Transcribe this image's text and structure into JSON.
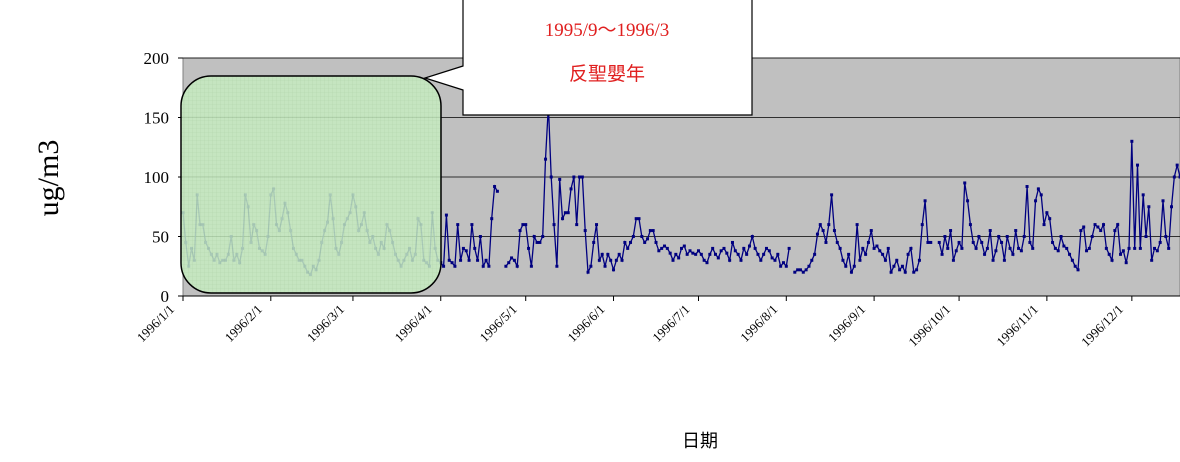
{
  "chart_data": {
    "type": "line",
    "y_label": "ug/m3",
    "x_label": "日期",
    "annotation": [
      "1995/9～1996/3",
      "反聖嬰年"
    ],
    "ylim": [
      0,
      200
    ],
    "yticks": [
      0,
      50,
      100,
      150,
      200
    ],
    "grid": true,
    "xlim": [
      "1996/1/1",
      "1996/12/18"
    ],
    "xticks": [
      "1996/1/1",
      "1996/2/1",
      "1996/3/1",
      "1996/4/1",
      "1996/5/1",
      "1996/6/1",
      "1996/7/1",
      "1996/8/1",
      "1996/9/1",
      "1996/10/1",
      "1996/11/1",
      "1996/12/1"
    ],
    "x": [
      "1996/1/1",
      "1996/1/2",
      "1996/1/3",
      "1996/1/4",
      "1996/1/5",
      "1996/1/6",
      "1996/1/7",
      "1996/1/8",
      "1996/1/9",
      "1996/1/10",
      "1996/1/11",
      "1996/1/12",
      "1996/1/13",
      "1996/1/14",
      "1996/1/15",
      "1996/1/16",
      "1996/1/17",
      "1996/1/18",
      "1996/1/19",
      "1996/1/20",
      "1996/1/21",
      "1996/1/22",
      "1996/1/23",
      "1996/1/24",
      "1996/1/25",
      "1996/1/26",
      "1996/1/27",
      "1996/1/28",
      "1996/1/29",
      "1996/1/30",
      "1996/1/31",
      "1996/2/1",
      "1996/2/2",
      "1996/2/3",
      "1996/2/4",
      "1996/2/5",
      "1996/2/6",
      "1996/2/7",
      "1996/2/8",
      "1996/2/9",
      "1996/2/10",
      "1996/2/11",
      "1996/2/12",
      "1996/2/13",
      "1996/2/14",
      "1996/2/15",
      "1996/2/16",
      "1996/2/17",
      "1996/2/18",
      "1996/2/19",
      "1996/2/20",
      "1996/2/21",
      "1996/2/22",
      "1996/2/23",
      "1996/2/24",
      "1996/2/25",
      "1996/2/26",
      "1996/2/27",
      "1996/2/28",
      "1996/2/29",
      "1996/3/1",
      "1996/3/2",
      "1996/3/3",
      "1996/3/4",
      "1996/3/5",
      "1996/3/6",
      "1996/3/7",
      "1996/3/8",
      "1996/3/9",
      "1996/3/10",
      "1996/3/11",
      "1996/3/12",
      "1996/3/13",
      "1996/3/14",
      "1996/3/15",
      "1996/3/16",
      "1996/3/17",
      "1996/3/18",
      "1996/3/19",
      "1996/3/20",
      "1996/3/21",
      "1996/3/22",
      "1996/3/23",
      "1996/3/24",
      "1996/3/25",
      "1996/3/26",
      "1996/3/27",
      "1996/3/28",
      "1996/3/29",
      "1996/3/30",
      "1996/3/31",
      "1996/4/1",
      "1996/4/2",
      "1996/4/3",
      "1996/4/4",
      "1996/4/5",
      "1996/4/6",
      "1996/4/7",
      "1996/4/8",
      "1996/4/9",
      "1996/4/10",
      "1996/4/11",
      "1996/4/12",
      "1996/4/13",
      "1996/4/14",
      "1996/4/15",
      "1996/4/16",
      "1996/4/17",
      "1996/4/18",
      "1996/4/19",
      "1996/4/20",
      "1996/4/21",
      "1996/4/22",
      "1996/4/23",
      "1996/4/24",
      "1996/4/25",
      "1996/4/26",
      "1996/4/27",
      "1996/4/28",
      "1996/4/29",
      "1996/4/30",
      "1996/5/1",
      "1996/5/2",
      "1996/5/3",
      "1996/5/4",
      "1996/5/5",
      "1996/5/6",
      "1996/5/7",
      "1996/5/8",
      "1996/5/9",
      "1996/5/10",
      "1996/5/11",
      "1996/5/12",
      "1996/5/13",
      "1996/5/14",
      "1996/5/15",
      "1996/5/16",
      "1996/5/17",
      "1996/5/18",
      "1996/5/19",
      "1996/5/20",
      "1996/5/21",
      "1996/5/22",
      "1996/5/23",
      "1996/5/24",
      "1996/5/25",
      "1996/5/26",
      "1996/5/27",
      "1996/5/28",
      "1996/5/29",
      "1996/5/30",
      "1996/5/31",
      "1996/6/1",
      "1996/6/2",
      "1996/6/3",
      "1996/6/4",
      "1996/6/5",
      "1996/6/6",
      "1996/6/7",
      "1996/6/8",
      "1996/6/9",
      "1996/6/10",
      "1996/6/11",
      "1996/6/12",
      "1996/6/13",
      "1996/6/14",
      "1996/6/15",
      "1996/6/16",
      "1996/6/17",
      "1996/6/18",
      "1996/6/19",
      "1996/6/20",
      "1996/6/21",
      "1996/6/22",
      "1996/6/23",
      "1996/6/24",
      "1996/6/25",
      "1996/6/26",
      "1996/6/27",
      "1996/6/28",
      "1996/6/29",
      "1996/6/30",
      "1996/7/1",
      "1996/7/2",
      "1996/7/3",
      "1996/7/4",
      "1996/7/5",
      "1996/7/6",
      "1996/7/7",
      "1996/7/8",
      "1996/7/9",
      "1996/7/10",
      "1996/7/11",
      "1996/7/12",
      "1996/7/13",
      "1996/7/14",
      "1996/7/15",
      "1996/7/16",
      "1996/7/17",
      "1996/7/18",
      "1996/7/19",
      "1996/7/20",
      "1996/7/21",
      "1996/7/22",
      "1996/7/23",
      "1996/7/24",
      "1996/7/25",
      "1996/7/26",
      "1996/7/27",
      "1996/7/28",
      "1996/7/29",
      "1996/7/30",
      "1996/7/31",
      "1996/8/1",
      "1996/8/2",
      "1996/8/3",
      "1996/8/4",
      "1996/8/5",
      "1996/8/6",
      "1996/8/7",
      "1996/8/8",
      "1996/8/9",
      "1996/8/10",
      "1996/8/11",
      "1996/8/12",
      "1996/8/13",
      "1996/8/14",
      "1996/8/15",
      "1996/8/16",
      "1996/8/17",
      "1996/8/18",
      "1996/8/19",
      "1996/8/20",
      "1996/8/21",
      "1996/8/22",
      "1996/8/23",
      "1996/8/24",
      "1996/8/25",
      "1996/8/26",
      "1996/8/27",
      "1996/8/28",
      "1996/8/29",
      "1996/8/30",
      "1996/8/31",
      "1996/9/1",
      "1996/9/2",
      "1996/9/3",
      "1996/9/4",
      "1996/9/5",
      "1996/9/6",
      "1996/9/7",
      "1996/9/8",
      "1996/9/9",
      "1996/9/10",
      "1996/9/11",
      "1996/9/12",
      "1996/9/13",
      "1996/9/14",
      "1996/9/15",
      "1996/9/16",
      "1996/9/17",
      "1996/9/18",
      "1996/9/19",
      "1996/9/20",
      "1996/9/21",
      "1996/9/22",
      "1996/9/23",
      "1996/9/24",
      "1996/9/25",
      "1996/9/26",
      "1996/9/27",
      "1996/9/28",
      "1996/9/29",
      "1996/9/30",
      "1996/10/1",
      "1996/10/2",
      "1996/10/3",
      "1996/10/4",
      "1996/10/5",
      "1996/10/6",
      "1996/10/7",
      "1996/10/8",
      "1996/10/9",
      "1996/10/10",
      "1996/10/11",
      "1996/10/12",
      "1996/10/13",
      "1996/10/14",
      "1996/10/15",
      "1996/10/16",
      "1996/10/17",
      "1996/10/18",
      "1996/10/19",
      "1996/10/20",
      "1996/10/21",
      "1996/10/22",
      "1996/10/23",
      "1996/10/24",
      "1996/10/25",
      "1996/10/26",
      "1996/10/27",
      "1996/10/28",
      "1996/10/29",
      "1996/10/30",
      "1996/10/31",
      "1996/11/1",
      "1996/11/2",
      "1996/11/3",
      "1996/11/4",
      "1996/11/5",
      "1996/11/6",
      "1996/11/7",
      "1996/11/8",
      "1996/11/9",
      "1996/11/10",
      "1996/11/11",
      "1996/11/12",
      "1996/11/13",
      "1996/11/14",
      "1996/11/15",
      "1996/11/16",
      "1996/11/17",
      "1996/11/18",
      "1996/11/19",
      "1996/11/20",
      "1996/11/21",
      "1996/11/22",
      "1996/11/23",
      "1996/11/24",
      "1996/11/25",
      "1996/11/26",
      "1996/11/27",
      "1996/11/28",
      "1996/11/29",
      "1996/11/30",
      "1996/12/1",
      "1996/12/2",
      "1996/12/3",
      "1996/12/4",
      "1996/12/5",
      "1996/12/6",
      "1996/12/7",
      "1996/12/8",
      "1996/12/9",
      "1996/12/10",
      "1996/12/11",
      "1996/12/12",
      "1996/12/13",
      "1996/12/14",
      "1996/12/15",
      "1996/12/16",
      "1996/12/17",
      "1996/12/18"
    ],
    "color": "#000080",
    "values": [
      70,
      45,
      25,
      40,
      30,
      85,
      60,
      60,
      45,
      40,
      35,
      30,
      35,
      28,
      30,
      30,
      35,
      50,
      30,
      35,
      28,
      40,
      85,
      75,
      45,
      60,
      55,
      40,
      38,
      35,
      50,
      85,
      90,
      60,
      55,
      65,
      78,
      70,
      55,
      40,
      35,
      30,
      30,
      25,
      20,
      18,
      25,
      22,
      30,
      45,
      55,
      62,
      85,
      65,
      40,
      35,
      45,
      60,
      65,
      70,
      85,
      75,
      55,
      60,
      70,
      55,
      45,
      50,
      40,
      35,
      45,
      40,
      60,
      55,
      45,
      35,
      30,
      25,
      30,
      35,
      40,
      30,
      35,
      65,
      60,
      30,
      28,
      25,
      70,
      40,
      30,
      28,
      25,
      68,
      30,
      28,
      25,
      60,
      30,
      40,
      38,
      30,
      60,
      40,
      30,
      50,
      25,
      30,
      25,
      65,
      92,
      88,
      null,
      null,
      25,
      28,
      32,
      30,
      25,
      55,
      60,
      60,
      40,
      25,
      50,
      45,
      45,
      50,
      115,
      160,
      100,
      60,
      25,
      98,
      65,
      70,
      70,
      90,
      100,
      60,
      100,
      100,
      55,
      20,
      25,
      45,
      60,
      30,
      35,
      25,
      35,
      30,
      22,
      30,
      35,
      30,
      45,
      40,
      45,
      50,
      65,
      65,
      50,
      45,
      48,
      55,
      55,
      45,
      38,
      40,
      42,
      40,
      36,
      30,
      35,
      32,
      40,
      42,
      35,
      38,
      36,
      35,
      38,
      35,
      30,
      28,
      35,
      40,
      35,
      32,
      38,
      40,
      36,
      30,
      45,
      38,
      35,
      30,
      40,
      35,
      42,
      50,
      40,
      35,
      30,
      35,
      40,
      38,
      32,
      30,
      35,
      25,
      28,
      25,
      40,
      null,
      20,
      22,
      22,
      20,
      22,
      25,
      30,
      35,
      52,
      60,
      55,
      45,
      60,
      85,
      55,
      45,
      40,
      30,
      25,
      35,
      20,
      25,
      60,
      30,
      40,
      35,
      45,
      55,
      40,
      42,
      38,
      35,
      30,
      40,
      20,
      25,
      30,
      22,
      25,
      20,
      35,
      40,
      20,
      22,
      30,
      60,
      80,
      45,
      45,
      null,
      null,
      45,
      35,
      50,
      40,
      55,
      30,
      38,
      45,
      40,
      95,
      80,
      60,
      45,
      40,
      50,
      45,
      35,
      40,
      55,
      30,
      38,
      50,
      45,
      30,
      50,
      40,
      35,
      55,
      40,
      38,
      50,
      92,
      45,
      40,
      80,
      90,
      85,
      60,
      70,
      65,
      45,
      40,
      38,
      50,
      42,
      40,
      35,
      30,
      25,
      22,
      55,
      58,
      38,
      40,
      50,
      60,
      58,
      55,
      60,
      40,
      35,
      30,
      55,
      60,
      35,
      38,
      28,
      40,
      130,
      40,
      110,
      40,
      85,
      50,
      75,
      30,
      40,
      38,
      45,
      80,
      50,
      40,
      75,
      100,
      110,
      100
    ]
  }
}
